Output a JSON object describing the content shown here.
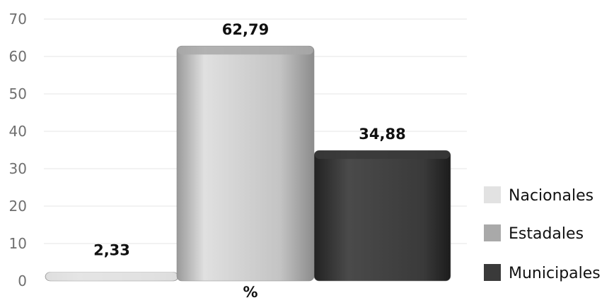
{
  "chart_data": {
    "type": "bar",
    "categories": [
      "%"
    ],
    "series": [
      {
        "name": "Nacionales",
        "values": [
          2.33
        ],
        "label": "2,33",
        "color": "#e2e2e2"
      },
      {
        "name": "Estadales",
        "values": [
          62.79
        ],
        "label": "62,79",
        "color": "#a9a9a9"
      },
      {
        "name": "Municipales",
        "values": [
          34.88
        ],
        "label": "34,88",
        "color": "#3a3a3a"
      }
    ],
    "yticks": [
      "0",
      "10",
      "20",
      "30",
      "40",
      "50",
      "60",
      "70"
    ],
    "ylim": [
      0,
      70
    ],
    "xlabel": "%",
    "grid": true,
    "legend_position": "right"
  }
}
